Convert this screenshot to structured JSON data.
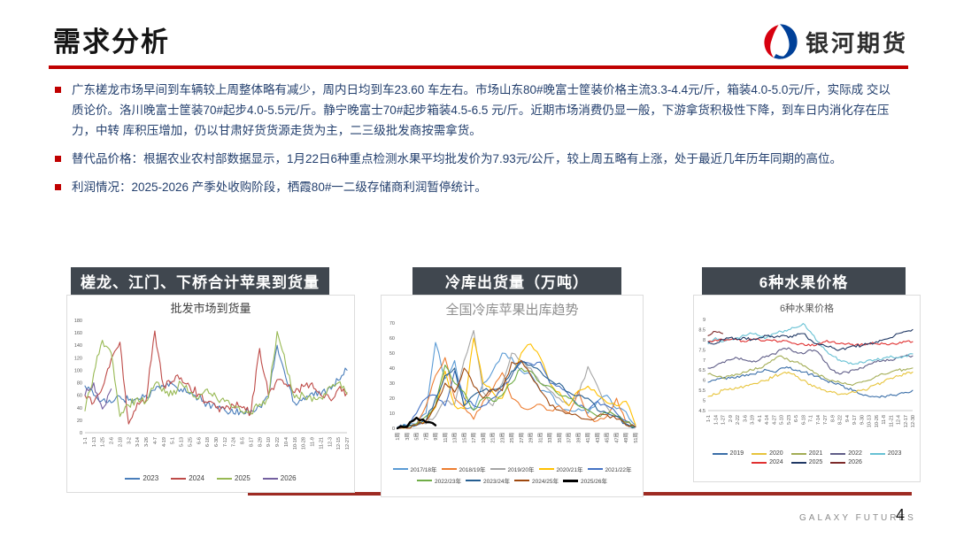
{
  "page": {
    "title": "需求分析",
    "brand": "银河期货",
    "footer_brand": "GALAXY FUTURES",
    "page_number": "4"
  },
  "colors": {
    "accent_red": "#c00000",
    "header_bar": "#40474f",
    "bottom_rule": "#9e2b23"
  },
  "bullets": [
    "广东槎龙市场早间到车辆较上周整体略有减少，周内日均到车23.60 车左右。市场山东80#晚富士筐装价格主流3.3-4.4元/斤，箱装4.0-5.0元/斤，实际成 交以质论价。洛川晚富士筐装70#起步4.0-5.5元/斤。静宁晚富士70#起步箱装4.5-6.5 元/斤。近期市场消费仍显一般，下游拿货积极性下降，到车日内消化存在压力，中转 库积压增加，仍以甘肃好货货源走货为主，二三级批发商按需拿货。",
    "替代品价格：根据农业农村部数据显示，1月22日6种重点检测水果平均批发价为7.93元/公斤，较上周五略有上涨，处于最近几年历年同期的高位。",
    "利润情况：2025-2026 产季处收购阶段，栖霞80#一二级存储商利润暂停统计。"
  ],
  "panels": [
    {
      "header": "槎龙、江门、下桥合计苹果到货量"
    },
    {
      "header": "冷库出货量（万吨）"
    },
    {
      "header": "6种水果价格"
    }
  ],
  "chart_data": [
    {
      "type": "line",
      "title": "批发市场到货量",
      "xlabel": "",
      "ylabel": "",
      "ylim": [
        0,
        180
      ],
      "ytick_step": 20,
      "grid": false,
      "legend_position": "bottom",
      "categories": [
        "1-1",
        "1-13",
        "1-25",
        "2-6",
        "2-18",
        "3-2",
        "3-14",
        "3-26",
        "4-7",
        "4-19",
        "5-1",
        "5-13",
        "5-25",
        "6-6",
        "6-18",
        "6-30",
        "7-12",
        "7-24",
        "8-5",
        "8-17",
        "8-29",
        "9-10",
        "9-22",
        "10-4",
        "10-16",
        "10-28",
        "11-9",
        "11-21",
        "12-3",
        "12-15",
        "12-27"
      ],
      "series": [
        {
          "name": "2023",
          "color": "#4a7ebb",
          "values": [
            75,
            60,
            52,
            48,
            58,
            52,
            55,
            60,
            68,
            74,
            78,
            70,
            62,
            55,
            47,
            41,
            36,
            31,
            33,
            36,
            42,
            58,
            140,
            88,
            48,
            56,
            64,
            60,
            74,
            84,
            100
          ]
        },
        {
          "name": "2024",
          "color": "#be4b48",
          "values": [
            60,
            48,
            72,
            118,
            145,
            14,
            48,
            52,
            163,
            75,
            82,
            88,
            74,
            62,
            48,
            40,
            38,
            44,
            40,
            31,
            135,
            60,
            85,
            78,
            64,
            74,
            80,
            60,
            55,
            70,
            64
          ]
        },
        {
          "name": "2025",
          "color": "#98b954",
          "values": [
            35,
            95,
            148,
            128,
            26,
            44,
            56,
            50,
            78,
            72,
            60,
            80,
            64,
            54,
            70,
            58,
            50,
            40,
            34,
            30,
            46,
            56,
            162,
            108,
            56,
            60,
            50,
            56,
            74,
            80,
            62
          ]
        },
        {
          "name": "2026",
          "color": "#7460a0",
          "values": [
            60,
            80,
            38,
            70
          ]
        }
      ]
    },
    {
      "type": "line",
      "title": "全国冷库苹果出库趋势",
      "xlabel": "",
      "ylabel": "",
      "ylim": [
        0,
        70
      ],
      "ytick_step": 10,
      "grid": false,
      "legend_position": "bottom",
      "categories": [
        "1周",
        "3周",
        "5周",
        "7周",
        "9周",
        "11周",
        "13周",
        "15周",
        "17周",
        "19周",
        "21周",
        "23周",
        "25周",
        "27周",
        "29周",
        "31周",
        "33周",
        "35周",
        "37周",
        "39周",
        "41周",
        "43周",
        "45周",
        "47周",
        "49周",
        "51周"
      ],
      "series": [
        {
          "name": "2017/18年",
          "color": "#5b9bd5",
          "values": [
            1,
            2,
            3,
            10,
            57,
            33,
            45,
            14,
            12,
            30,
            38,
            50,
            47,
            38,
            36,
            25,
            24,
            15,
            12,
            13,
            10,
            18,
            22,
            13,
            11,
            2
          ]
        },
        {
          "name": "2018/19年",
          "color": "#ed7d31",
          "values": [
            0,
            1,
            2,
            15,
            35,
            47,
            20,
            14,
            6,
            18,
            26,
            37,
            20,
            14,
            13,
            16,
            12,
            15,
            10,
            25,
            8,
            5,
            8,
            20,
            4,
            1
          ]
        },
        {
          "name": "2019/20年",
          "color": "#a5a5a5",
          "values": [
            0,
            1,
            2,
            3,
            8,
            18,
            16,
            45,
            65,
            24,
            15,
            30,
            50,
            45,
            40,
            30,
            25,
            20,
            15,
            22,
            41,
            28,
            14,
            8,
            3,
            1
          ]
        },
        {
          "name": "2020/21年",
          "color": "#ffc000",
          "values": [
            0,
            1,
            2,
            5,
            14,
            38,
            15,
            13,
            60,
            30,
            24,
            20,
            35,
            50,
            56,
            47,
            30,
            24,
            15,
            25,
            28,
            22,
            17,
            15,
            18,
            2
          ]
        },
        {
          "name": "2021/22年",
          "color": "#4472c4",
          "values": [
            0,
            2,
            10,
            20,
            22,
            15,
            38,
            20,
            15,
            15,
            20,
            26,
            35,
            45,
            43,
            44,
            30,
            28,
            22,
            15,
            12,
            18,
            15,
            10,
            5,
            1
          ]
        },
        {
          "name": "2022/23年",
          "color": "#70ad47",
          "values": [
            0,
            1,
            3,
            8,
            15,
            42,
            30,
            24,
            12,
            20,
            18,
            22,
            30,
            40,
            38,
            30,
            28,
            22,
            20,
            15,
            12,
            8,
            10,
            8,
            4,
            1
          ]
        },
        {
          "name": "2023/24年",
          "color": "#255e91",
          "values": [
            0,
            1,
            2,
            5,
            20,
            35,
            40,
            15,
            22,
            25,
            26,
            28,
            38,
            44,
            42,
            38,
            32,
            30,
            24,
            22,
            20,
            12,
            10,
            8,
            3,
            1
          ]
        },
        {
          "name": "2024/25年",
          "color": "#9e480e",
          "values": [
            0,
            0,
            2,
            5,
            15,
            30,
            24,
            40,
            28,
            20,
            26,
            25,
            44,
            45,
            35,
            25,
            15,
            12,
            10,
            8,
            6,
            8,
            9,
            6,
            2,
            1
          ]
        },
        {
          "name": "2025/26年",
          "color": "#000000",
          "width": 2.4,
          "values": [
            0,
            1,
            7,
            4,
            2
          ]
        }
      ]
    },
    {
      "type": "line",
      "title": "6种水果价格",
      "xlabel": "",
      "ylabel": "",
      "ylim": [
        4.5,
        9
      ],
      "ytick_step": 0.5,
      "grid": false,
      "legend_position": "bottom",
      "categories": [
        "1-1",
        "1-14",
        "1-27",
        "2-9",
        "2-22",
        "3-6",
        "3-19",
        "4-1",
        "4-14",
        "4-27",
        "5-10",
        "5-23",
        "6-5",
        "6-18",
        "7-1",
        "7-14",
        "7-27",
        "8-9",
        "8-22",
        "9-4",
        "9-17",
        "9-30",
        "10-13",
        "10-26",
        "11-8",
        "11-21",
        "12-4",
        "12-17",
        "12-30"
      ],
      "series": [
        {
          "name": "2019",
          "color": "#3a6ea8",
          "values": [
            5.9,
            6.0,
            6.1,
            6.1,
            6.2,
            6.2,
            6.3,
            6.4,
            6.5,
            6.4,
            6.6,
            6.6,
            6.5,
            6.4,
            6.3,
            6.2,
            6.0,
            5.9,
            5.8,
            5.6,
            5.5,
            5.3,
            5.2,
            5.2,
            5.2,
            5.3,
            5.3,
            5.4,
            5.5
          ]
        },
        {
          "name": "2020",
          "color": "#e7c43c",
          "values": [
            5.2,
            5.3,
            5.5,
            5.6,
            5.6,
            5.7,
            5.8,
            5.9,
            6.0,
            6.2,
            6.3,
            6.4,
            6.2,
            6.0,
            5.8,
            5.6,
            5.5,
            5.4,
            5.3,
            5.3,
            5.4,
            5.5,
            5.6,
            5.8,
            5.9,
            6.1,
            6.2,
            6.3,
            6.4
          ]
        },
        {
          "name": "2021",
          "color": "#a3ad55",
          "values": [
            6.3,
            6.2,
            6.1,
            6.2,
            6.3,
            6.4,
            6.5,
            6.6,
            6.8,
            7.0,
            7.2,
            7.0,
            6.9,
            6.7,
            6.5,
            6.3,
            6.1,
            6.0,
            5.9,
            5.8,
            5.8,
            5.9,
            6.0,
            6.2,
            6.3,
            6.4,
            6.5,
            6.5,
            6.6
          ]
        },
        {
          "name": "2022",
          "color": "#605e88",
          "values": [
            6.6,
            6.7,
            6.9,
            7.0,
            7.1,
            7.0,
            6.9,
            7.0,
            7.2,
            7.3,
            7.5,
            7.6,
            7.4,
            7.3,
            7.5,
            7.4,
            6.9,
            6.5,
            6.3,
            6.4,
            6.5,
            6.6,
            6.8,
            6.9,
            7.0,
            7.0,
            7.1,
            7.2,
            7.2
          ]
        },
        {
          "name": "2023",
          "color": "#67c1d4",
          "values": [
            7.8,
            8.1,
            7.9,
            8.0,
            8.1,
            8.2,
            8.3,
            8.2,
            8.1,
            8.3,
            8.4,
            8.5,
            8.6,
            8.8,
            8.4,
            7.9,
            7.5,
            7.2,
            7.0,
            6.9,
            6.8,
            6.9,
            7.0,
            7.0,
            7.1,
            7.2,
            7.1,
            7.2,
            7.3
          ]
        },
        {
          "name": "2024",
          "color": "#e03131",
          "values": [
            7.9,
            8.0,
            8.0,
            8.0,
            8.0,
            7.9,
            8.0,
            8.0,
            8.0,
            8.0,
            7.9,
            7.9,
            7.8,
            7.8,
            7.7,
            7.8,
            7.9,
            7.9,
            7.8,
            7.8,
            7.7,
            7.8,
            7.8,
            7.8,
            7.8,
            7.8,
            7.8,
            7.9,
            7.9
          ]
        },
        {
          "name": "2025",
          "color": "#203864",
          "values": [
            7.9,
            7.8,
            8.0,
            8.1,
            8.0,
            8.1,
            8.0,
            8.1,
            8.2,
            8.1,
            8.2,
            8.1,
            8.2,
            8.3,
            8.0,
            7.8,
            7.7,
            7.6,
            7.5,
            7.6,
            7.7,
            7.7,
            7.8,
            7.9,
            8.0,
            8.1,
            8.3,
            8.4,
            8.5
          ]
        },
        {
          "name": "2026",
          "color": "#7d2a2a",
          "values": [
            8.2,
            8.4,
            8.3
          ]
        }
      ]
    }
  ]
}
